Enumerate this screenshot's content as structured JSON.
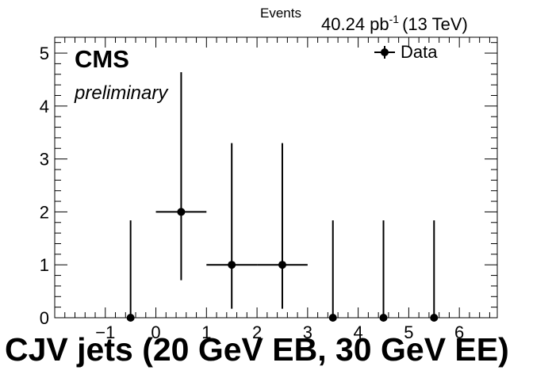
{
  "chart_data": {
    "type": "scatter",
    "title": "",
    "ylabel_top": "Events",
    "lumi": {
      "value": "40.24 pb",
      "exponent": "-1",
      "energy": "(13 TeV)"
    },
    "experiment": "CMS",
    "status": "preliminary",
    "xlabel": "CJV jets (20 GeV EB, 30 GeV EE)",
    "xlim": [
      -2,
      6.75
    ],
    "ylim": [
      0,
      5.3
    ],
    "x_ticks": [
      -1,
      0,
      1,
      2,
      3,
      4,
      5,
      6
    ],
    "x_tick_labels": [
      "−1",
      "0",
      "1",
      "2",
      "3",
      "4",
      "5",
      "6"
    ],
    "y_ticks": [
      0,
      1,
      2,
      3,
      4,
      5
    ],
    "y_tick_labels": [
      "0",
      "1",
      "2",
      "3",
      "4",
      "5"
    ],
    "legend": {
      "position": "top-right",
      "entries": [
        "Data"
      ]
    },
    "series": [
      {
        "name": "Data",
        "points": [
          {
            "x": -0.5,
            "y": 0,
            "xerr": 0,
            "yerr_low": 0,
            "yerr_high": 1.84
          },
          {
            "x": 0.5,
            "y": 2,
            "xerr": 0.5,
            "yerr_low": 1.29,
            "yerr_high": 2.64
          },
          {
            "x": 1.5,
            "y": 1,
            "xerr": 0.5,
            "yerr_low": 0.83,
            "yerr_high": 2.3
          },
          {
            "x": 2.5,
            "y": 1,
            "xerr": 0.5,
            "yerr_low": 0.83,
            "yerr_high": 2.3
          },
          {
            "x": 3.5,
            "y": 0,
            "xerr": 0,
            "yerr_low": 0,
            "yerr_high": 1.84
          },
          {
            "x": 4.5,
            "y": 0,
            "xerr": 0,
            "yerr_low": 0,
            "yerr_high": 1.84
          },
          {
            "x": 5.5,
            "y": 0,
            "xerr": 0,
            "yerr_low": 0,
            "yerr_high": 1.84
          }
        ]
      }
    ]
  }
}
